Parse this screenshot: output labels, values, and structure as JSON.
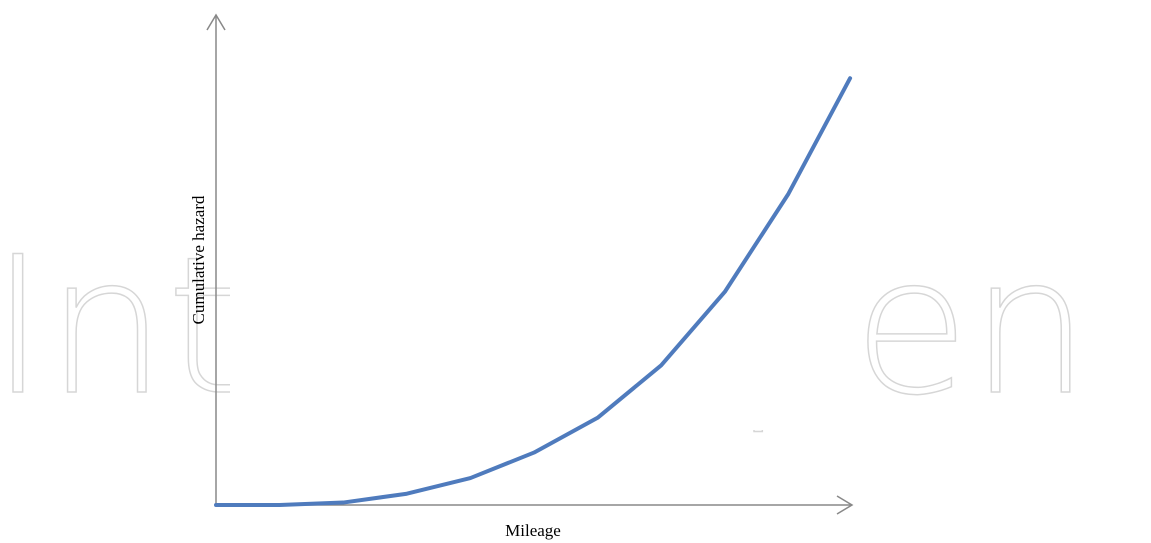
{
  "watermark": "IntechOpen",
  "chart_data": {
    "type": "line",
    "x_label": "Mileage",
    "y_label": "Cumulative hazard",
    "xlim": [
      0,
      100
    ],
    "ylim": [
      0,
      100
    ],
    "x": [
      0,
      10,
      20,
      30,
      40,
      50,
      60,
      70,
      80,
      90,
      99.7
    ],
    "series": [
      {
        "color": "#4f7bbd",
        "values": [
          0,
          0,
          0.5,
          2.3,
          5.5,
          10.7,
          17.8,
          28.5,
          43.5,
          63.5,
          87.1
        ]
      }
    ]
  }
}
